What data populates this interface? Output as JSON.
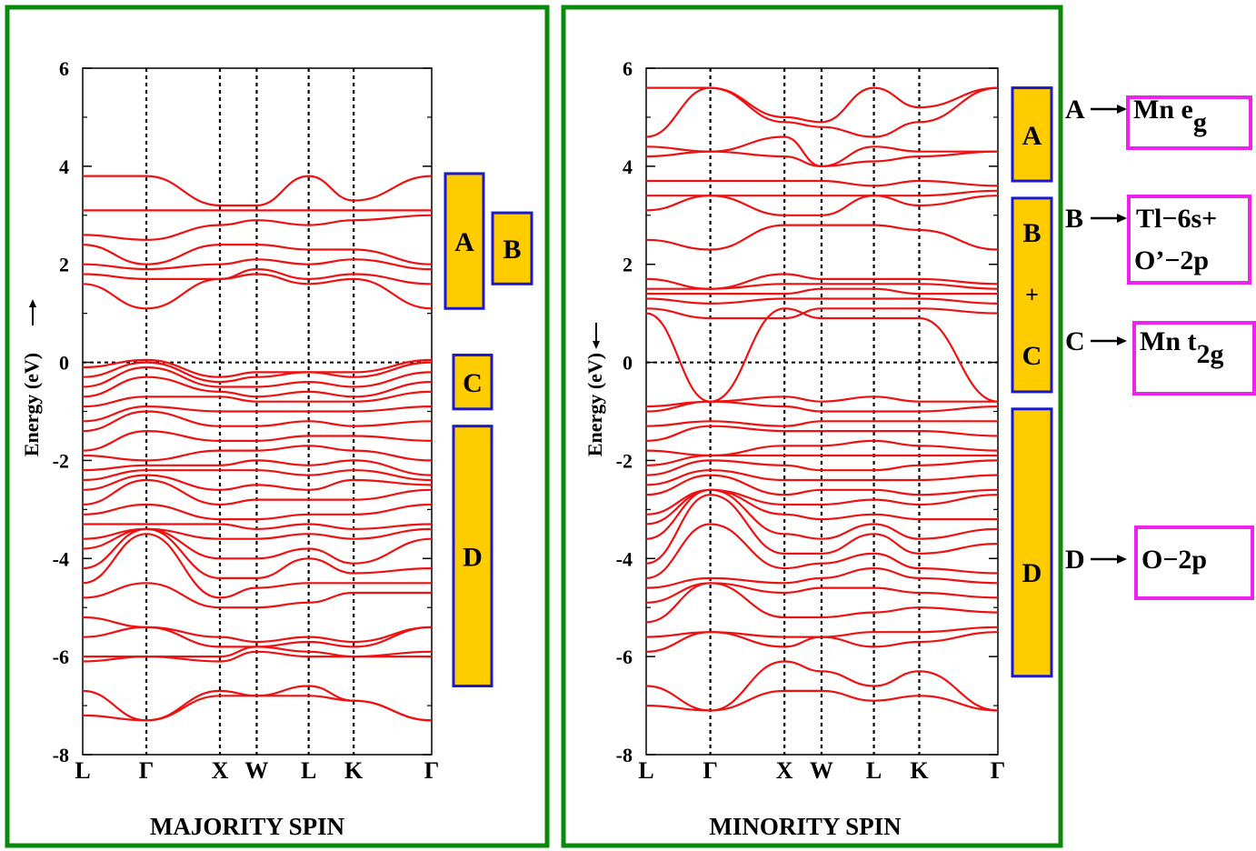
{
  "chart_data": [
    {
      "type": "line",
      "title": "MAJORITY SPIN",
      "ylabel": "Energy (eV)",
      "spin_arrow": "up",
      "ylim": [
        -8,
        6
      ],
      "yticks": [
        6,
        4,
        2,
        0,
        -2,
        -4,
        -6,
        -8
      ],
      "kpoints": [
        "L",
        "Γ",
        "X",
        "W",
        "L",
        "K",
        "Γ"
      ],
      "kpositions": [
        0,
        0.866,
        1.866,
        2.366,
        3.073,
        3.685,
        4.746
      ],
      "fermi_level": 0,
      "series_color": "#ee1111",
      "bands": [
        [
          -7.2,
          -7.3,
          -6.8,
          -6.8,
          -6.8,
          -6.9,
          -7.3
        ],
        [
          -6.7,
          -7.3,
          -6.7,
          -6.8,
          -6.6,
          -6.9,
          -7.3
        ],
        [
          -6.1,
          -6.0,
          -6.1,
          -5.9,
          -6.0,
          -6.0,
          -6.0
        ],
        [
          -6.0,
          -6.0,
          -6.0,
          -5.8,
          -5.9,
          -6.0,
          -5.9
        ],
        [
          -5.6,
          -5.4,
          -5.8,
          -5.8,
          -5.7,
          -5.8,
          -5.4
        ],
        [
          -5.2,
          -5.4,
          -5.6,
          -5.7,
          -5.6,
          -5.7,
          -5.4
        ],
        [
          -4.8,
          -4.5,
          -5.0,
          -5.0,
          -4.9,
          -4.7,
          -4.7
        ],
        [
          -4.5,
          -3.5,
          -4.8,
          -4.6,
          -4.5,
          -4.5,
          -4.5
        ],
        [
          -4.2,
          -3.4,
          -4.4,
          -4.4,
          -4.0,
          -4.3,
          -4.2
        ],
        [
          -3.8,
          -3.4,
          -4.0,
          -4.0,
          -3.8,
          -4.1,
          -3.6
        ],
        [
          -3.6,
          -3.4,
          -3.6,
          -3.6,
          -3.5,
          -3.6,
          -3.4
        ],
        [
          -3.3,
          -3.3,
          -3.3,
          -3.4,
          -3.3,
          -3.4,
          -3.3
        ],
        [
          -3.1,
          -2.9,
          -3.2,
          -3.2,
          -3.1,
          -3.1,
          -2.9
        ],
        [
          -2.9,
          -2.4,
          -2.9,
          -2.8,
          -2.8,
          -2.8,
          -2.6
        ],
        [
          -2.6,
          -2.3,
          -2.6,
          -2.5,
          -2.6,
          -2.4,
          -2.5
        ],
        [
          -2.4,
          -2.2,
          -2.2,
          -2.2,
          -2.3,
          -2.2,
          -2.4
        ],
        [
          -2.2,
          -2.1,
          -2.1,
          -2.0,
          -2.1,
          -2.0,
          -2.3
        ],
        [
          -1.9,
          -2.0,
          -1.8,
          -1.8,
          -1.7,
          -1.8,
          -2.0
        ],
        [
          -1.8,
          -1.4,
          -1.6,
          -1.6,
          -1.5,
          -1.5,
          -1.6
        ],
        [
          -1.4,
          -1.0,
          -1.3,
          -1.3,
          -1.2,
          -1.3,
          -1.2
        ],
        [
          -1.2,
          -0.9,
          -1.0,
          -1.0,
          -1.0,
          -1.0,
          -0.9
        ],
        [
          -0.9,
          -0.7,
          -0.7,
          -0.8,
          -0.8,
          -0.8,
          -0.6
        ],
        [
          -0.7,
          -0.3,
          -0.6,
          -0.7,
          -0.6,
          -0.7,
          -0.4
        ],
        [
          -0.5,
          -0.1,
          -0.5,
          -0.5,
          -0.4,
          -0.5,
          -0.2
        ],
        [
          -0.3,
          0.0,
          -0.4,
          -0.3,
          -0.2,
          -0.3,
          0.0
        ],
        [
          -0.1,
          0.05,
          -0.3,
          -0.2,
          -0.2,
          -0.2,
          0.05
        ],
        [
          1.6,
          1.1,
          1.7,
          1.8,
          1.6,
          1.7,
          1.1
        ],
        [
          1.8,
          1.7,
          1.7,
          1.9,
          1.7,
          1.8,
          1.6
        ],
        [
          2.0,
          1.9,
          2.0,
          2.1,
          2.0,
          2.1,
          1.9
        ],
        [
          2.4,
          2.0,
          2.4,
          2.4,
          2.3,
          2.3,
          2.0
        ],
        [
          2.6,
          2.5,
          2.8,
          2.9,
          2.8,
          2.9,
          3.0
        ],
        [
          3.1,
          3.1,
          3.1,
          3.1,
          3.1,
          3.1,
          3.1
        ],
        [
          3.8,
          3.8,
          3.2,
          3.2,
          3.8,
          3.3,
          3.8
        ]
      ],
      "annotations": [
        {
          "label": "A",
          "ymin": 1.1,
          "ymax": 3.85
        },
        {
          "label": "B",
          "ymin": 1.6,
          "ymax": 3.05
        },
        {
          "label": "C",
          "ymin": -0.95,
          "ymax": 0.15
        },
        {
          "label": "D",
          "ymin": -6.6,
          "ymax": -1.3
        }
      ]
    },
    {
      "type": "line",
      "title": "MINORITY SPIN",
      "ylabel": "Energy (eV)",
      "spin_arrow": "down",
      "ylim": [
        -8,
        6
      ],
      "yticks": [
        6,
        4,
        2,
        0,
        -2,
        -4,
        -6,
        -8
      ],
      "kpoints": [
        "L",
        "Γ",
        "X",
        "W",
        "L",
        "K",
        "Γ"
      ],
      "kpositions": [
        0,
        0.866,
        1.866,
        2.366,
        3.073,
        3.685,
        4.746
      ],
      "fermi_level": 0,
      "series_color": "#ee1111",
      "bands": [
        [
          -7.0,
          -7.1,
          -6.7,
          -6.7,
          -6.9,
          -6.8,
          -7.1
        ],
        [
          -6.6,
          -7.1,
          -6.1,
          -6.3,
          -6.6,
          -6.3,
          -7.1
        ],
        [
          -5.9,
          -5.5,
          -5.8,
          -5.6,
          -5.8,
          -5.7,
          -5.5
        ],
        [
          -5.6,
          -5.5,
          -5.6,
          -5.6,
          -5.5,
          -5.5,
          -5.4
        ],
        [
          -5.3,
          -4.5,
          -5.2,
          -5.2,
          -5.1,
          -5.0,
          -5.1
        ],
        [
          -4.9,
          -4.5,
          -4.7,
          -4.6,
          -4.6,
          -4.7,
          -4.8
        ],
        [
          -4.6,
          -4.4,
          -4.5,
          -4.4,
          -4.2,
          -4.4,
          -4.5
        ],
        [
          -4.4,
          -3.3,
          -4.2,
          -4.1,
          -3.9,
          -4.2,
          -4.3
        ],
        [
          -4.1,
          -2.7,
          -3.9,
          -3.9,
          -3.5,
          -3.9,
          -3.7
        ],
        [
          -3.6,
          -2.6,
          -3.5,
          -3.6,
          -3.3,
          -3.6,
          -3.4
        ],
        [
          -3.3,
          -2.6,
          -3.1,
          -3.2,
          -3.1,
          -3.2,
          -3.2
        ],
        [
          -3.1,
          -2.6,
          -2.9,
          -2.9,
          -2.8,
          -2.9,
          -2.7
        ],
        [
          -2.7,
          -2.3,
          -2.7,
          -2.6,
          -2.6,
          -2.7,
          -2.6
        ],
        [
          -2.5,
          -2.2,
          -2.4,
          -2.4,
          -2.4,
          -2.4,
          -2.3
        ],
        [
          -2.3,
          -2.0,
          -2.1,
          -2.2,
          -2.2,
          -2.1,
          -2.0
        ],
        [
          -2.1,
          -1.9,
          -1.9,
          -1.9,
          -1.9,
          -1.9,
          -1.9
        ],
        [
          -1.8,
          -1.9,
          -1.7,
          -1.7,
          -1.6,
          -1.7,
          -1.8
        ],
        [
          -1.6,
          -1.3,
          -1.4,
          -1.4,
          -1.4,
          -1.4,
          -1.5
        ],
        [
          -1.3,
          -1.2,
          -1.3,
          -1.2,
          -1.2,
          -1.2,
          -1.2
        ],
        [
          -1.0,
          -0.8,
          -0.9,
          -1.0,
          -1.0,
          -1.0,
          -0.9
        ],
        [
          -0.9,
          -0.8,
          -0.7,
          -0.8,
          -0.7,
          -0.8,
          -0.8
        ],
        [
          1.0,
          -0.8,
          1.1,
          0.9,
          0.9,
          0.9,
          -0.8
        ],
        [
          1.1,
          0.9,
          0.9,
          1.1,
          1.1,
          1.1,
          1.0
        ],
        [
          1.3,
          1.2,
          1.3,
          1.3,
          1.3,
          1.3,
          1.2
        ],
        [
          1.4,
          1.4,
          1.4,
          1.5,
          1.5,
          1.4,
          1.4
        ],
        [
          1.5,
          1.5,
          1.6,
          1.6,
          1.6,
          1.6,
          1.5
        ],
        [
          1.7,
          1.5,
          1.8,
          1.7,
          1.7,
          1.7,
          1.6
        ],
        [
          2.5,
          2.3,
          2.8,
          2.8,
          2.8,
          2.7,
          2.3
        ],
        [
          3.1,
          3.4,
          3.0,
          3.0,
          3.4,
          3.2,
          3.4
        ],
        [
          3.4,
          3.4,
          3.4,
          3.4,
          3.4,
          3.4,
          3.5
        ],
        [
          3.7,
          3.7,
          3.7,
          3.7,
          3.6,
          3.7,
          3.6
        ],
        [
          4.2,
          4.3,
          4.2,
          4.0,
          4.1,
          4.2,
          4.3
        ],
        [
          4.4,
          4.3,
          4.6,
          4.0,
          4.4,
          4.3,
          4.3
        ],
        [
          4.6,
          5.6,
          4.9,
          4.8,
          4.6,
          4.9,
          5.6
        ],
        [
          5.6,
          5.6,
          5.0,
          4.9,
          5.6,
          5.2,
          5.6
        ]
      ],
      "annotations": [
        {
          "label": "A",
          "ymin": 3.7,
          "ymax": 5.6
        },
        {
          "label": "B",
          "ymin": -0.6,
          "ymax": 3.35
        },
        {
          "label": "C",
          "ymin": -0.6,
          "ymax": 3.35
        },
        {
          "label": "D",
          "ymin": -6.4,
          "ymax": -0.95
        }
      ]
    }
  ],
  "combined_box_plus": "+",
  "legend": [
    {
      "letter": "A",
      "desc": "Mn e",
      "sub": "g"
    },
    {
      "letter": "B",
      "desc": "Tl−6s+",
      "desc2": "O’−2p",
      "sub": ""
    },
    {
      "letter": "C",
      "desc": "Mn t",
      "sub": "2g"
    },
    {
      "letter": "D",
      "desc": "O−2p",
      "sub": ""
    }
  ],
  "colors": {
    "frame": "#0a8a0a",
    "band": "#ee1111",
    "box_fill": "#ffcc00",
    "box_stroke": "#1a1acc",
    "legend_box": "#ee22ee",
    "text": "#000000"
  }
}
